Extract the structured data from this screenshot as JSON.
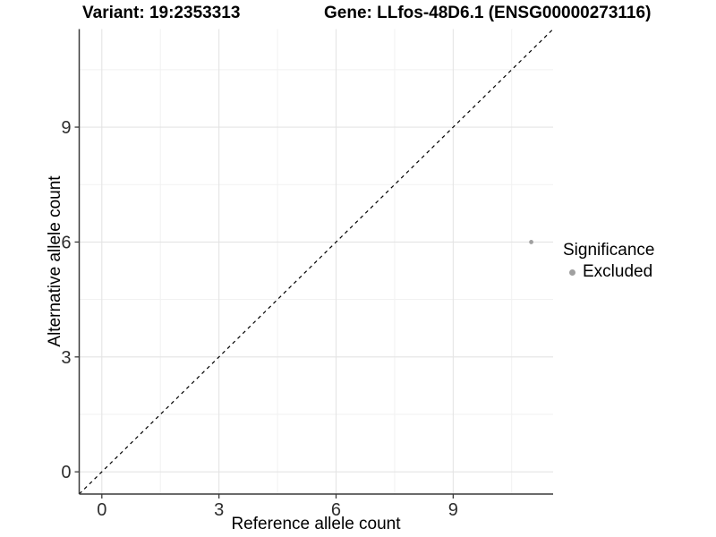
{
  "colors": {
    "background": "#ffffff",
    "grid_major": "#e4e4e4",
    "grid_minor": "#f1f1f1",
    "axis_line": "#3a3a3a",
    "tick_mark": "#3a3a3a",
    "tick_label": "#2e2e2e",
    "reference_line": "#000000",
    "point": "#a0a0a0"
  },
  "chart_data": {
    "type": "scatter",
    "title_left": "Variant: 19:2353313",
    "title_right": "Gene: LLfos-48D6.1 (ENSG00000273116)",
    "xlabel": "Reference allele count",
    "ylabel": "Alternative allele count",
    "xlim": [
      -0.58,
      11.56
    ],
    "ylim": [
      -0.58,
      11.56
    ],
    "x_ticks": [
      0,
      3,
      6,
      9
    ],
    "y_ticks": [
      0,
      3,
      6,
      9
    ],
    "x_minor_ticks": [
      1.5,
      4.5,
      7.5,
      10.5
    ],
    "y_minor_ticks": [
      1.5,
      4.5,
      7.5,
      10.5
    ],
    "grid": "major+minor",
    "series": [
      {
        "name": "Excluded",
        "marker": "circle",
        "color": "#a0a0a0",
        "points": [
          {
            "x": 11,
            "y": 6
          }
        ]
      }
    ],
    "reference_line": {
      "kind": "identity",
      "slope": 1,
      "intercept": 0,
      "linestyle": "dashed",
      "color": "#000000"
    },
    "legend": {
      "title": "Significance",
      "position": "right",
      "items": [
        {
          "label": "Excluded",
          "color": "#a0a0a0"
        }
      ]
    }
  }
}
